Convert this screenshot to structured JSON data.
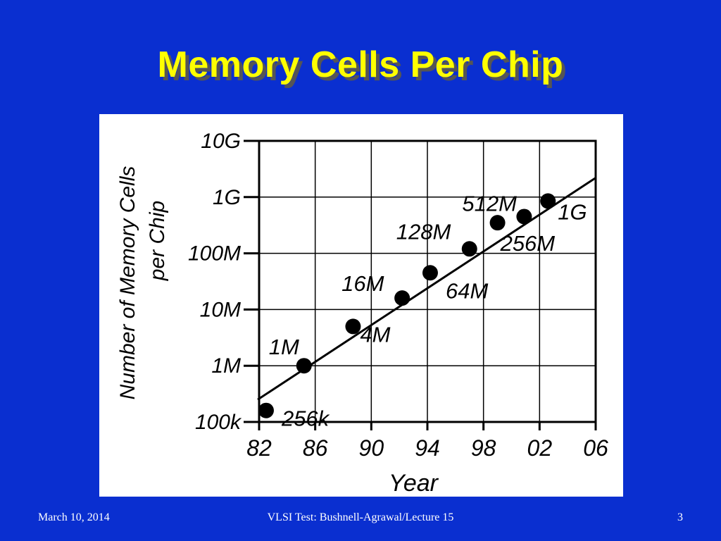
{
  "slide": {
    "title": "Memory Cells Per Chip",
    "footer_date": "March 10, 2014",
    "footer_center": "VLSI Test: Bushnell-Agrawal/Lecture 15",
    "footer_page": "3"
  },
  "colors": {
    "background": "#0a2fd0",
    "title": "#ffff00",
    "title_shadow": "#555555",
    "footer_text": "#ffffff",
    "chart_ink": "#000000",
    "chart_background": "#ffffff"
  },
  "chart_data": {
    "type": "scatter",
    "title": "",
    "xlabel": "Year",
    "ylabel": "Number of Memory Cells per Chip",
    "log_y": true,
    "xlim": [
      1982,
      2006
    ],
    "ylim": [
      100000,
      10000000000
    ],
    "grid": true,
    "x_ticks": [
      1982,
      1986,
      1990,
      1994,
      1998,
      2002,
      2006
    ],
    "x_tick_labels": [
      "82",
      "86",
      "90",
      "94",
      "98",
      "02",
      "06"
    ],
    "y_ticks": [
      100000,
      1000000,
      10000000,
      100000000,
      1000000000,
      10000000000
    ],
    "y_tick_labels": [
      "100k",
      "1M",
      "10M",
      "100M",
      "1G",
      "10G"
    ],
    "series": [
      {
        "points": [
          {
            "x": 1982.5,
            "y": 160000,
            "label": "256k"
          },
          {
            "x": 1985.2,
            "y": 1000000,
            "label": "1M"
          },
          {
            "x": 1988.7,
            "y": 5000000,
            "label": "4M"
          },
          {
            "x": 1992.2,
            "y": 16000000,
            "label": "16M"
          },
          {
            "x": 1994.2,
            "y": 45000000,
            "label": "64M"
          },
          {
            "x": 1997.0,
            "y": 120000000,
            "label": "128M"
          },
          {
            "x": 1999.0,
            "y": 350000000,
            "label": "256M"
          },
          {
            "x": 2000.9,
            "y": 450000000,
            "label": "512M"
          },
          {
            "x": 2002.6,
            "y": 850000000,
            "label": "1G"
          }
        ]
      }
    ],
    "trend_line": {
      "x": [
        1981.9,
        2006.0
      ],
      "y": [
        250000,
        2200000000
      ]
    }
  }
}
